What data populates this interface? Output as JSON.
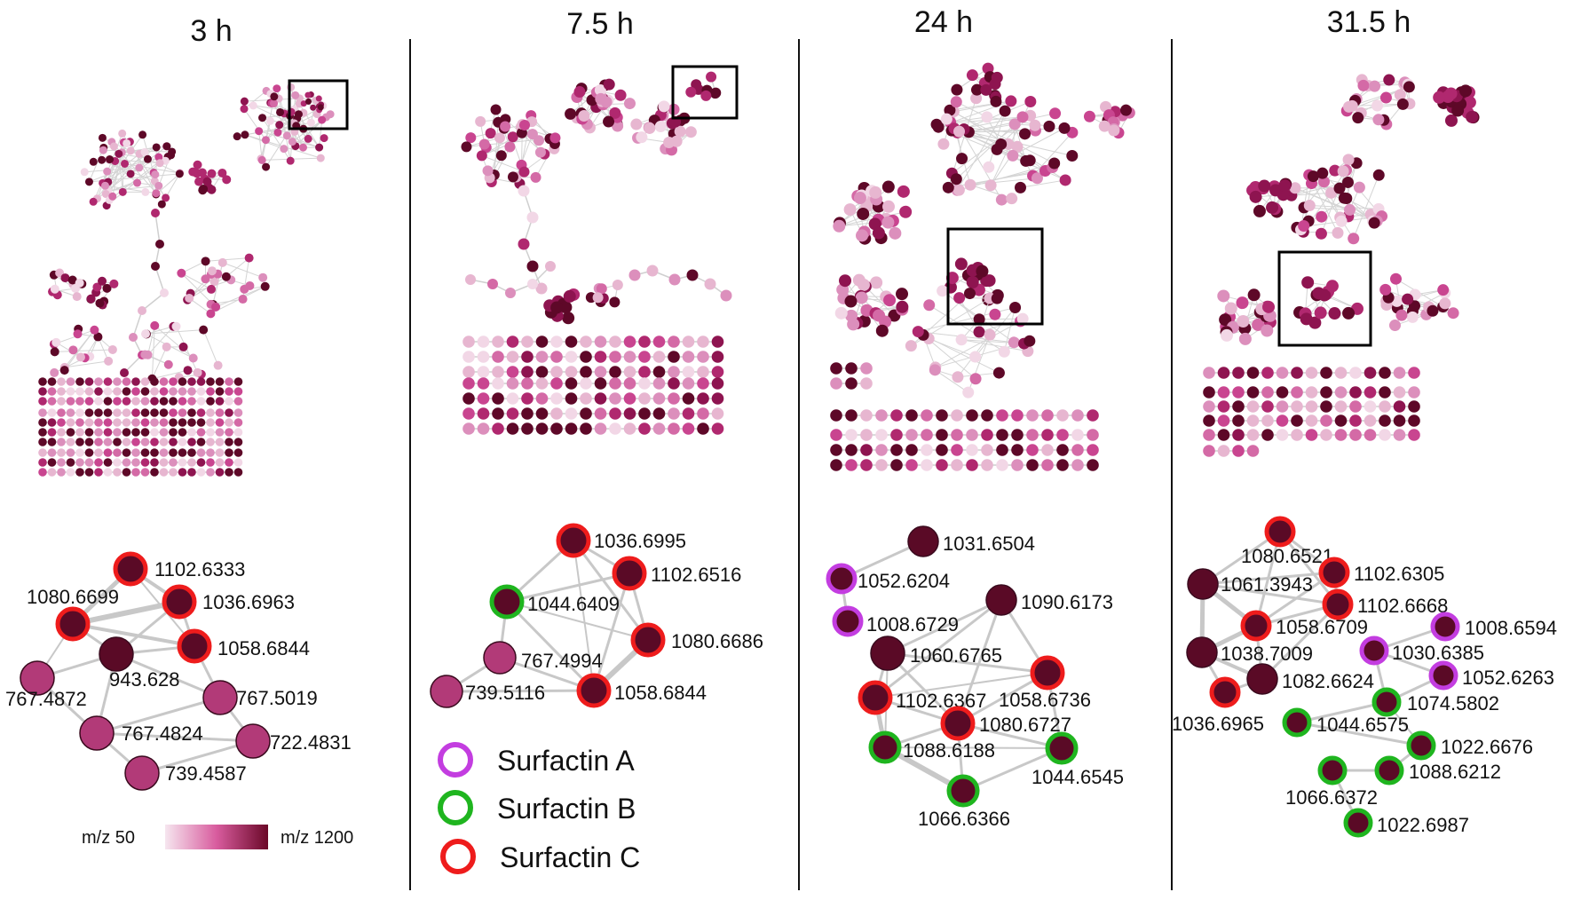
{
  "panels": [
    {
      "title": "3 h",
      "nodes": [
        {
          "label": "1102.6333",
          "type": "C"
        },
        {
          "label": "1080.6699",
          "type": "C"
        },
        {
          "label": "1036.6963",
          "type": "C"
        },
        {
          "label": "1058.6844",
          "type": "C"
        },
        {
          "label": "943.628",
          "type": "none"
        },
        {
          "label": "767.4872",
          "type": "none"
        },
        {
          "label": "767.5019",
          "type": "none"
        },
        {
          "label": "767.4824",
          "type": "none"
        },
        {
          "label": "722.4831",
          "type": "none"
        },
        {
          "label": "739.4587",
          "type": "none"
        }
      ]
    },
    {
      "title": "7.5 h",
      "nodes": [
        {
          "label": "1036.6995",
          "type": "C"
        },
        {
          "label": "1102.6516",
          "type": "C"
        },
        {
          "label": "1044.6409",
          "type": "B"
        },
        {
          "label": "1080.6686",
          "type": "C"
        },
        {
          "label": "767.4994",
          "type": "none"
        },
        {
          "label": "739.5116",
          "type": "none"
        },
        {
          "label": "1058.6844",
          "type": "C"
        }
      ]
    },
    {
      "title": "24 h",
      "nodes": [
        {
          "label": "1031.6504",
          "type": "none"
        },
        {
          "label": "1052.6204",
          "type": "A"
        },
        {
          "label": "1090.6173",
          "type": "none"
        },
        {
          "label": "1008.6729",
          "type": "A"
        },
        {
          "label": "1060.6765",
          "type": "none"
        },
        {
          "label": "1102.6367",
          "type": "C"
        },
        {
          "label": "1058.6736",
          "type": "C"
        },
        {
          "label": "1080.6727",
          "type": "C"
        },
        {
          "label": "1088.6188",
          "type": "B"
        },
        {
          "label": "1044.6545",
          "type": "B"
        },
        {
          "label": "1066.6366",
          "type": "B"
        }
      ]
    },
    {
      "title": "31.5 h",
      "nodes": [
        {
          "label": "1080.6521",
          "type": "C"
        },
        {
          "label": "1061.3943",
          "type": "none"
        },
        {
          "label": "1102.6305",
          "type": "C"
        },
        {
          "label": "1102.6668",
          "type": "C"
        },
        {
          "label": "1058.6709",
          "type": "C"
        },
        {
          "label": "1008.6594",
          "type": "A"
        },
        {
          "label": "1038.7009",
          "type": "none"
        },
        {
          "label": "1030.6385",
          "type": "A"
        },
        {
          "label": "1052.6263",
          "type": "A"
        },
        {
          "label": "1082.6624",
          "type": "none"
        },
        {
          "label": "1074.5802",
          "type": "B"
        },
        {
          "label": "1036.6965",
          "type": "C"
        },
        {
          "label": "1044.6575",
          "type": "B"
        },
        {
          "label": "1022.6676",
          "type": "B"
        },
        {
          "label": "1088.6212",
          "type": "B"
        },
        {
          "label": "1066.6372",
          "type": "B"
        },
        {
          "label": "1022.6987",
          "type": "B"
        }
      ]
    }
  ],
  "legend": [
    {
      "key": "A",
      "label": "Surfactin A",
      "color": "#c33de0"
    },
    {
      "key": "B",
      "label": "Surfactin B",
      "color": "#1fb51f"
    },
    {
      "key": "C",
      "label": "Surfactin C",
      "color": "#ee1c1c"
    }
  ],
  "colorbar": {
    "min_label": "m/z 50",
    "max_label": "m/z 1200",
    "color_low": "#f3dbe8",
    "color_high": "#6b0828"
  },
  "colors": {
    "node_dark": "#5a0a26",
    "node_mid": "#b23a78",
    "edge": "#c8c8c8",
    "divider": "#111111"
  }
}
